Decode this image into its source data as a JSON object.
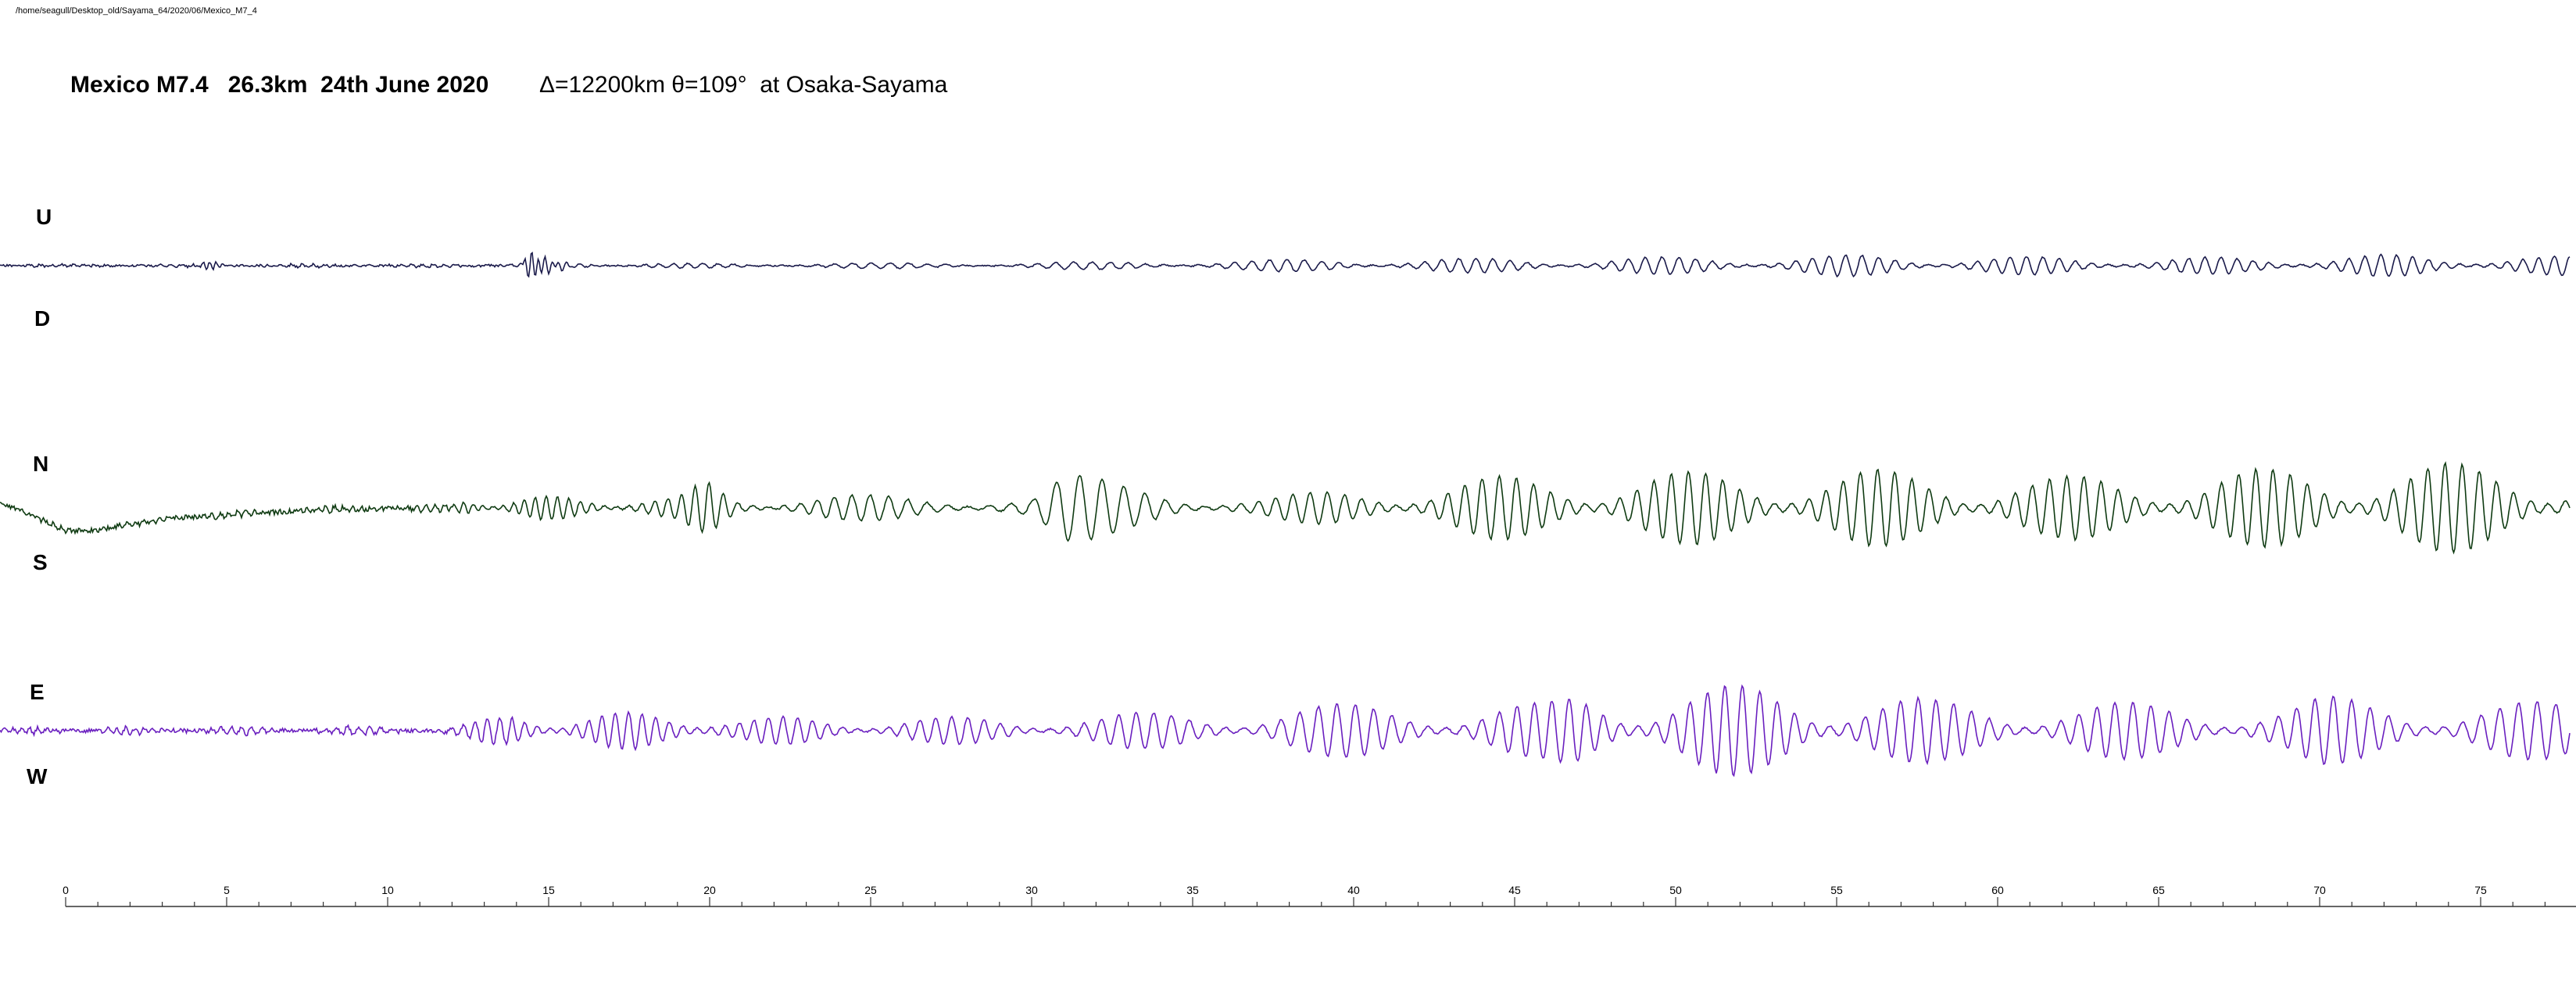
{
  "file_path": "/home/seagull/Desktop_old/Sayama_64/2020/06/Mexico_M7_4",
  "title": {
    "main": "Mexico M7.4   26.3km  24th June 2020",
    "sub": "Δ=12200km θ=109°  at Osaka-Sayama"
  },
  "chart_data": {
    "type": "line",
    "x_axis": {
      "range": [
        -2,
        78
      ],
      "major_ticks": [
        0,
        5,
        10,
        15,
        20,
        25,
        30,
        35,
        40,
        45,
        50,
        55,
        60,
        65,
        70,
        75
      ],
      "minor_step": 1,
      "grid": false
    },
    "channels": [
      {
        "id": "ud",
        "top_label": "U",
        "bottom_label": "D",
        "color": "#1a1a4a"
      },
      {
        "id": "ns",
        "top_label": "N",
        "bottom_label": "S",
        "color": "#0f3b12"
      },
      {
        "id": "ew",
        "top_label": "E",
        "bottom_label": "W",
        "color": "#6a1fbf"
      }
    ]
  }
}
